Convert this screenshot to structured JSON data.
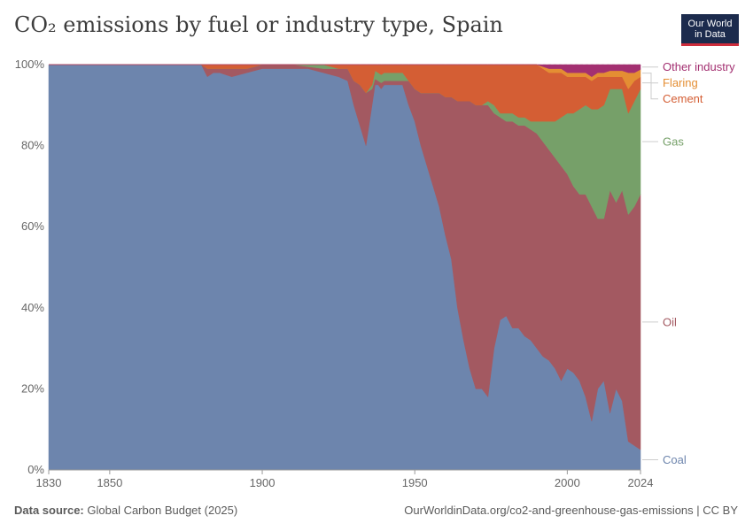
{
  "header": {
    "title": "CO₂ emissions by fuel or industry type, Spain",
    "logo_line1": "Our World",
    "logo_line2": "in Data"
  },
  "footer": {
    "source_label": "Data source:",
    "source_value": "Global Carbon Budget (2025)",
    "url": "OurWorldinData.org/co2-and-greenhouse-gas-emissions | CC BY"
  },
  "chart_data": {
    "type": "area",
    "stacked": true,
    "normalized_percent": true,
    "xlim": [
      1830,
      2024
    ],
    "ylim": [
      0,
      100
    ],
    "x_ticks": [
      1830,
      1850,
      1900,
      1950,
      2000,
      2024
    ],
    "y_ticks": [
      "0%",
      "20%",
      "40%",
      "60%",
      "80%",
      "100%"
    ],
    "grid": "horizontal",
    "legend_placement": "right",
    "x": [
      1830,
      1880,
      1882,
      1884,
      1886,
      1890,
      1895,
      1900,
      1910,
      1915,
      1920,
      1925,
      1928,
      1930,
      1932,
      1934,
      1936,
      1937,
      1938,
      1939,
      1940,
      1942,
      1944,
      1946,
      1948,
      1950,
      1952,
      1954,
      1956,
      1958,
      1960,
      1962,
      1964,
      1966,
      1968,
      1970,
      1972,
      1974,
      1976,
      1978,
      1980,
      1982,
      1984,
      1986,
      1988,
      1990,
      1992,
      1994,
      1996,
      1998,
      2000,
      2002,
      2004,
      2006,
      2008,
      2010,
      2012,
      2014,
      2016,
      2018,
      2020,
      2022,
      2024
    ],
    "series": [
      {
        "name": "Coal",
        "color": "#6d85ad",
        "values": [
          100,
          100,
          97,
          98,
          98,
          97,
          98,
          99,
          99,
          99,
          98,
          97,
          96,
          90,
          85,
          80,
          90,
          95,
          95,
          94,
          95,
          95,
          95,
          95,
          90,
          86,
          80,
          75,
          70,
          65,
          58,
          52,
          40,
          32,
          25,
          20,
          20,
          18,
          30,
          37,
          38,
          35,
          35,
          33,
          32,
          30,
          28,
          27,
          25,
          22,
          25,
          24,
          22,
          18,
          12,
          20,
          22,
          14,
          20,
          17,
          7,
          6,
          5
        ]
      },
      {
        "name": "Oil",
        "color": "#a35961",
        "values": [
          0,
          0,
          2,
          1,
          1,
          2,
          1,
          1,
          1,
          0.5,
          1,
          2,
          3,
          6,
          10,
          13,
          4,
          1.5,
          1,
          1.5,
          1,
          1,
          1,
          1,
          6,
          8,
          13,
          18,
          23,
          28,
          34,
          40,
          51,
          59,
          66,
          70,
          70,
          72,
          58,
          50,
          48,
          51,
          50,
          52,
          52,
          53,
          53,
          52,
          52,
          53,
          48,
          46,
          46,
          50,
          53,
          42,
          40,
          55,
          46,
          52,
          56,
          59,
          63
        ]
      },
      {
        "name": "Gas",
        "color": "#76a069",
        "values": [
          0,
          0,
          0,
          0,
          0,
          0,
          0,
          0,
          0,
          0.5,
          1,
          0,
          0,
          0,
          0,
          0,
          1,
          2,
          2,
          2,
          2,
          2,
          2,
          2,
          0,
          0,
          0,
          0,
          0,
          0,
          0,
          0,
          0,
          0,
          0,
          0,
          0,
          1,
          2,
          1,
          2,
          2,
          2,
          2,
          2,
          3,
          5,
          7,
          9,
          12,
          15,
          18,
          21,
          22,
          24,
          27,
          28,
          25,
          28,
          25,
          25,
          26,
          26
        ]
      },
      {
        "name": "Cement",
        "color": "#d45e34",
        "values": [
          0,
          0,
          1,
          1,
          1,
          1,
          1,
          0,
          0,
          0,
          0,
          1,
          1,
          4,
          5,
          7,
          5,
          1.5,
          2,
          2.5,
          2,
          2,
          2,
          2,
          4,
          6,
          7,
          7,
          7,
          7,
          8,
          8,
          9,
          9,
          9,
          10,
          10,
          9,
          10,
          12,
          12,
          12,
          13,
          13,
          14,
          14,
          13,
          12,
          12,
          11,
          9,
          9,
          8,
          7,
          7,
          8,
          7,
          3,
          3,
          3,
          6,
          5,
          3
        ]
      },
      {
        "name": "Flaring",
        "color": "#e48e33",
        "values": [
          0,
          0,
          0,
          0,
          0,
          0,
          0,
          0,
          0,
          0,
          0,
          0,
          0,
          0,
          0,
          0,
          0,
          0,
          0,
          0,
          0,
          0,
          0,
          0,
          0,
          0,
          0,
          0,
          0,
          0,
          0,
          0,
          0,
          0,
          0,
          0,
          0,
          0,
          0,
          0,
          0,
          0,
          0,
          0,
          0,
          0,
          0.5,
          1,
          1,
          1,
          1,
          1,
          1,
          1,
          1,
          1,
          1,
          1.5,
          1.5,
          1.5,
          4,
          2,
          1.8
        ]
      },
      {
        "name": "Other industry",
        "color": "#a33071",
        "values": [
          0,
          0,
          0,
          0,
          0,
          0,
          0,
          0,
          0,
          0,
          0,
          0,
          0,
          0,
          0,
          0,
          0,
          0,
          0,
          0,
          0,
          0,
          0,
          0,
          0,
          0,
          0,
          0,
          0,
          0,
          0,
          0,
          0,
          0,
          0,
          0,
          0,
          0,
          0,
          0,
          0,
          0,
          0,
          0,
          0,
          0,
          0.5,
          1,
          1,
          1,
          2,
          2,
          2,
          2,
          3,
          2,
          2,
          1.5,
          1.5,
          1.5,
          2,
          2,
          1.2
        ]
      }
    ]
  }
}
